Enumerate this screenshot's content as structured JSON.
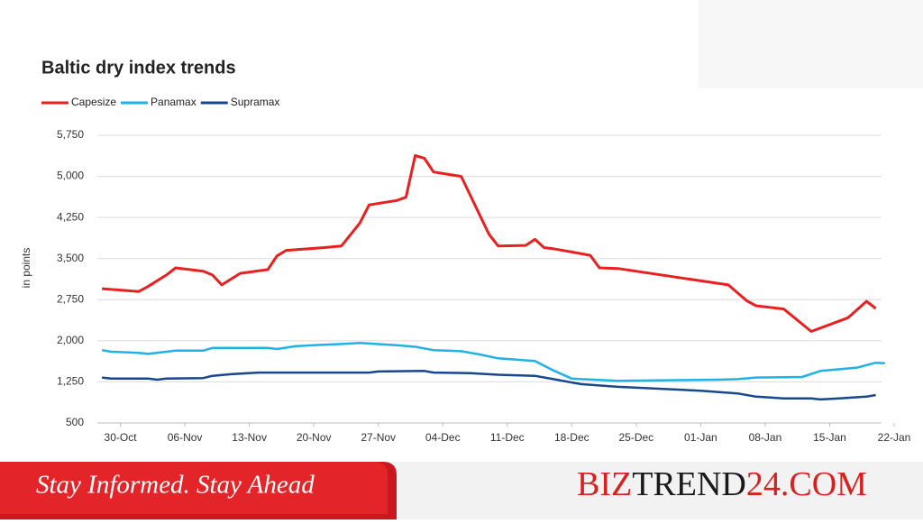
{
  "chart_data": {
    "type": "line",
    "title": "Baltic dry index trends",
    "y_label": "in points",
    "xlim": [
      -0.5,
      86
    ],
    "xticks": [
      {
        "value": 2,
        "label": "30-Oct"
      },
      {
        "value": 9,
        "label": "06-Nov"
      },
      {
        "value": 16,
        "label": "13-Nov"
      },
      {
        "value": 23,
        "label": "20-Nov"
      },
      {
        "value": 30,
        "label": "27-Nov"
      },
      {
        "value": 37,
        "label": "04-Dec"
      },
      {
        "value": 44,
        "label": "11-Dec"
      },
      {
        "value": 51,
        "label": "18-Dec"
      },
      {
        "value": 58,
        "label": "25-Dec"
      },
      {
        "value": 65,
        "label": "01-Jan"
      },
      {
        "value": 72,
        "label": "08-Jan"
      },
      {
        "value": 79,
        "label": "15-Jan"
      },
      {
        "value": 86,
        "label": "22-Jan"
      }
    ],
    "ylim": [
      500,
      5750
    ],
    "yticks": [
      500,
      {
        "value": 1250,
        "label": "1,250"
      },
      {
        "value": 2000,
        "label": "2,000"
      },
      {
        "value": 2750,
        "label": "2,750"
      },
      {
        "value": 3500,
        "label": "3,500"
      },
      {
        "value": 4250,
        "label": "4,250"
      },
      {
        "value": 5000,
        "label": "5,000"
      },
      {
        "value": 5750,
        "label": "5,750"
      }
    ],
    "grid": true,
    "series": [
      {
        "name": "Capesize",
        "color": "#e8201f",
        "x": [
          0,
          4,
          5,
          7,
          8,
          11,
          12,
          13,
          15,
          18,
          19,
          20,
          24,
          26,
          28,
          29,
          32,
          33,
          34,
          35,
          36,
          39,
          42,
          43,
          46,
          47,
          48,
          49,
          51,
          53,
          54,
          56,
          68,
          70,
          71,
          74,
          77,
          81,
          83,
          84
        ],
        "values": [
          2950,
          2900,
          2990,
          3200,
          3330,
          3270,
          3200,
          3020,
          3230,
          3300,
          3550,
          3650,
          3700,
          3730,
          4150,
          4480,
          4560,
          4620,
          5380,
          5330,
          5080,
          5000,
          3950,
          3730,
          3740,
          3850,
          3700,
          3680,
          3620,
          3560,
          3330,
          3320,
          3020,
          2730,
          2640,
          2580,
          2170,
          2420,
          2720,
          2590
        ]
      },
      {
        "name": "Panamax",
        "color": "#1fb2e6",
        "x": [
          0,
          1,
          4,
          5,
          8,
          11,
          12,
          18,
          19,
          21,
          23,
          27,
          28,
          30,
          32,
          34,
          36,
          39,
          41,
          43,
          47,
          49,
          51,
          56,
          67,
          69,
          71,
          76,
          78,
          82,
          84,
          85
        ],
        "values": [
          1830,
          1800,
          1780,
          1760,
          1820,
          1820,
          1870,
          1870,
          1850,
          1900,
          1920,
          1950,
          1960,
          1940,
          1920,
          1890,
          1830,
          1810,
          1750,
          1680,
          1630,
          1460,
          1310,
          1270,
          1290,
          1300,
          1330,
          1340,
          1450,
          1510,
          1600,
          1590
        ]
      },
      {
        "name": "Supramax",
        "color": "#17478c",
        "x": [
          0,
          1,
          5,
          6,
          7,
          11,
          12,
          14,
          17,
          23,
          29,
          30,
          35,
          36,
          40,
          43,
          47,
          49,
          52,
          56,
          65,
          69,
          71,
          72,
          74,
          77,
          78,
          80,
          83,
          84
        ],
        "values": [
          1330,
          1310,
          1310,
          1290,
          1310,
          1320,
          1360,
          1390,
          1420,
          1420,
          1420,
          1440,
          1450,
          1420,
          1410,
          1380,
          1360,
          1300,
          1210,
          1160,
          1090,
          1040,
          980,
          970,
          950,
          950,
          930,
          950,
          980,
          1010
        ]
      }
    ]
  },
  "banner": {
    "tagline": "Stay Informed. Stay Ahead",
    "brand": [
      "BIZ",
      "TREND",
      "24.COM"
    ]
  }
}
